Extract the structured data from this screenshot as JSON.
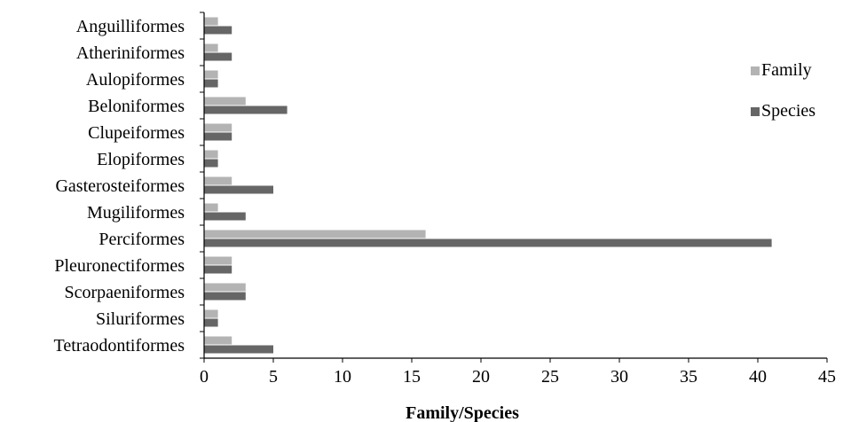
{
  "chart_data": {
    "type": "bar",
    "orientation": "horizontal",
    "categories": [
      "Anguilliformes",
      "Atheriniformes",
      "Aulopiformes",
      "Beloniformes",
      "Clupeiformes",
      "Elopiformes",
      "Gasterosteiformes",
      "Mugiliformes",
      "Perciformes",
      "Pleuronectiformes",
      "Scorpaeniformes",
      "Siluriformes",
      "Tetraodontiformes"
    ],
    "series": [
      {
        "name": "Family",
        "color": "#b3b3b3",
        "values": [
          1,
          1,
          1,
          3,
          2,
          1,
          2,
          1,
          16,
          2,
          3,
          1,
          2
        ]
      },
      {
        "name": "Species",
        "color": "#666666",
        "values": [
          2,
          2,
          1,
          6,
          2,
          1,
          5,
          3,
          41,
          2,
          3,
          1,
          5
        ]
      }
    ],
    "xlabel": "Family/Species",
    "ylabel": "",
    "xlim": [
      0,
      45
    ],
    "xticks": [
      0,
      5,
      10,
      15,
      20,
      25,
      30,
      35,
      40,
      45
    ],
    "grid": false,
    "legend_position": "right"
  }
}
